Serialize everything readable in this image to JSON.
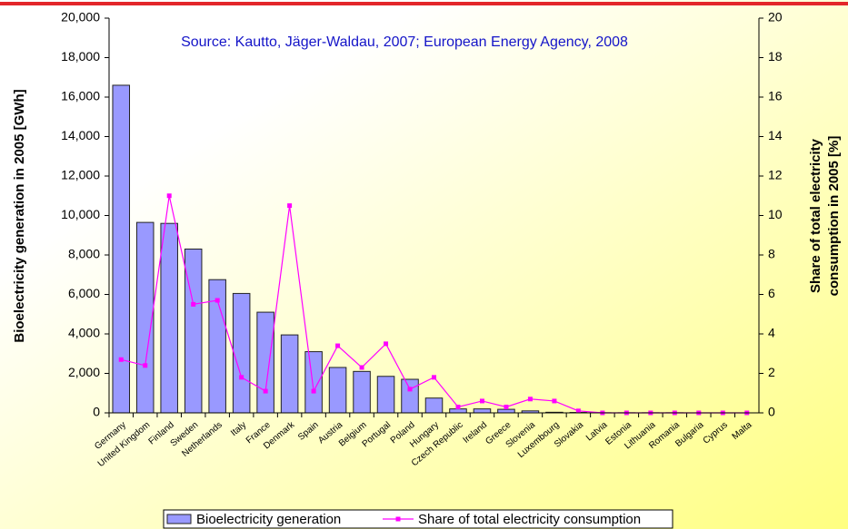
{
  "chart_data": {
    "type": "bar_line",
    "annotation": "Source: Kautto, Jäger-Waldau, 2007; European Energy Agency, 2008",
    "y_label": "Bioelectricity generation in 2005 [GWh]",
    "y2_label": [
      "Share of total electricity",
      "consumption in 2005 [%]"
    ],
    "categories": [
      "Germany",
      "United Kingdom",
      "Finland",
      "Sweden",
      "Netherlands",
      "Italy",
      "France",
      "Denmark",
      "Spain",
      "Austria",
      "Belgium",
      "Portugal",
      "Poland",
      "Hungary",
      "Czech Republic",
      "Ireland",
      "Greece",
      "Slovenia",
      "Luxembourg",
      "Slovakia",
      "Latvia",
      "Estonia",
      "Lithuania",
      "Romania",
      "Bulgaria",
      "Cyprus",
      "Malta"
    ],
    "series": [
      {
        "name": "Bioelectricity generation",
        "type": "bar",
        "color": "#9999ff",
        "values": [
          16600,
          9650,
          9600,
          8300,
          6750,
          6050,
          5100,
          3950,
          3100,
          2300,
          2100,
          1850,
          1700,
          750,
          200,
          200,
          180,
          100,
          30,
          20,
          5,
          5,
          5,
          5,
          0,
          0,
          0
        ]
      },
      {
        "name": "Share of total electricity consumption",
        "type": "line",
        "color": "#ff00ff",
        "axis": "y2",
        "values": [
          2.7,
          2.4,
          11,
          5.5,
          5.7,
          1.8,
          1.1,
          10.5,
          1.1,
          3.4,
          2.3,
          3.5,
          1.2,
          1.8,
          0.3,
          0.6,
          0.3,
          0.7,
          0.6,
          0.1,
          0,
          0,
          0,
          0,
          0,
          0,
          0
        ]
      }
    ],
    "ylim": [
      0,
      20000
    ],
    "yticks": [
      {
        "value": 0,
        "label": "0"
      },
      {
        "value": 2000,
        "label": "2,000"
      },
      {
        "value": 4000,
        "label": "4,000"
      },
      {
        "value": 6000,
        "label": "6,000"
      },
      {
        "value": 8000,
        "label": "8,000"
      },
      {
        "value": 10000,
        "label": "10,000"
      },
      {
        "value": 12000,
        "label": "12,000"
      },
      {
        "value": 14000,
        "label": "14,000"
      },
      {
        "value": 16000,
        "label": "16,000"
      },
      {
        "value": 18000,
        "label": "18,000"
      },
      {
        "value": 20000,
        "label": "20,000"
      }
    ],
    "y2lim": [
      0,
      20
    ],
    "y2ticks": [
      0,
      2,
      4,
      6,
      8,
      10,
      12,
      14,
      16,
      18,
      20
    ],
    "legend": "bottom"
  }
}
